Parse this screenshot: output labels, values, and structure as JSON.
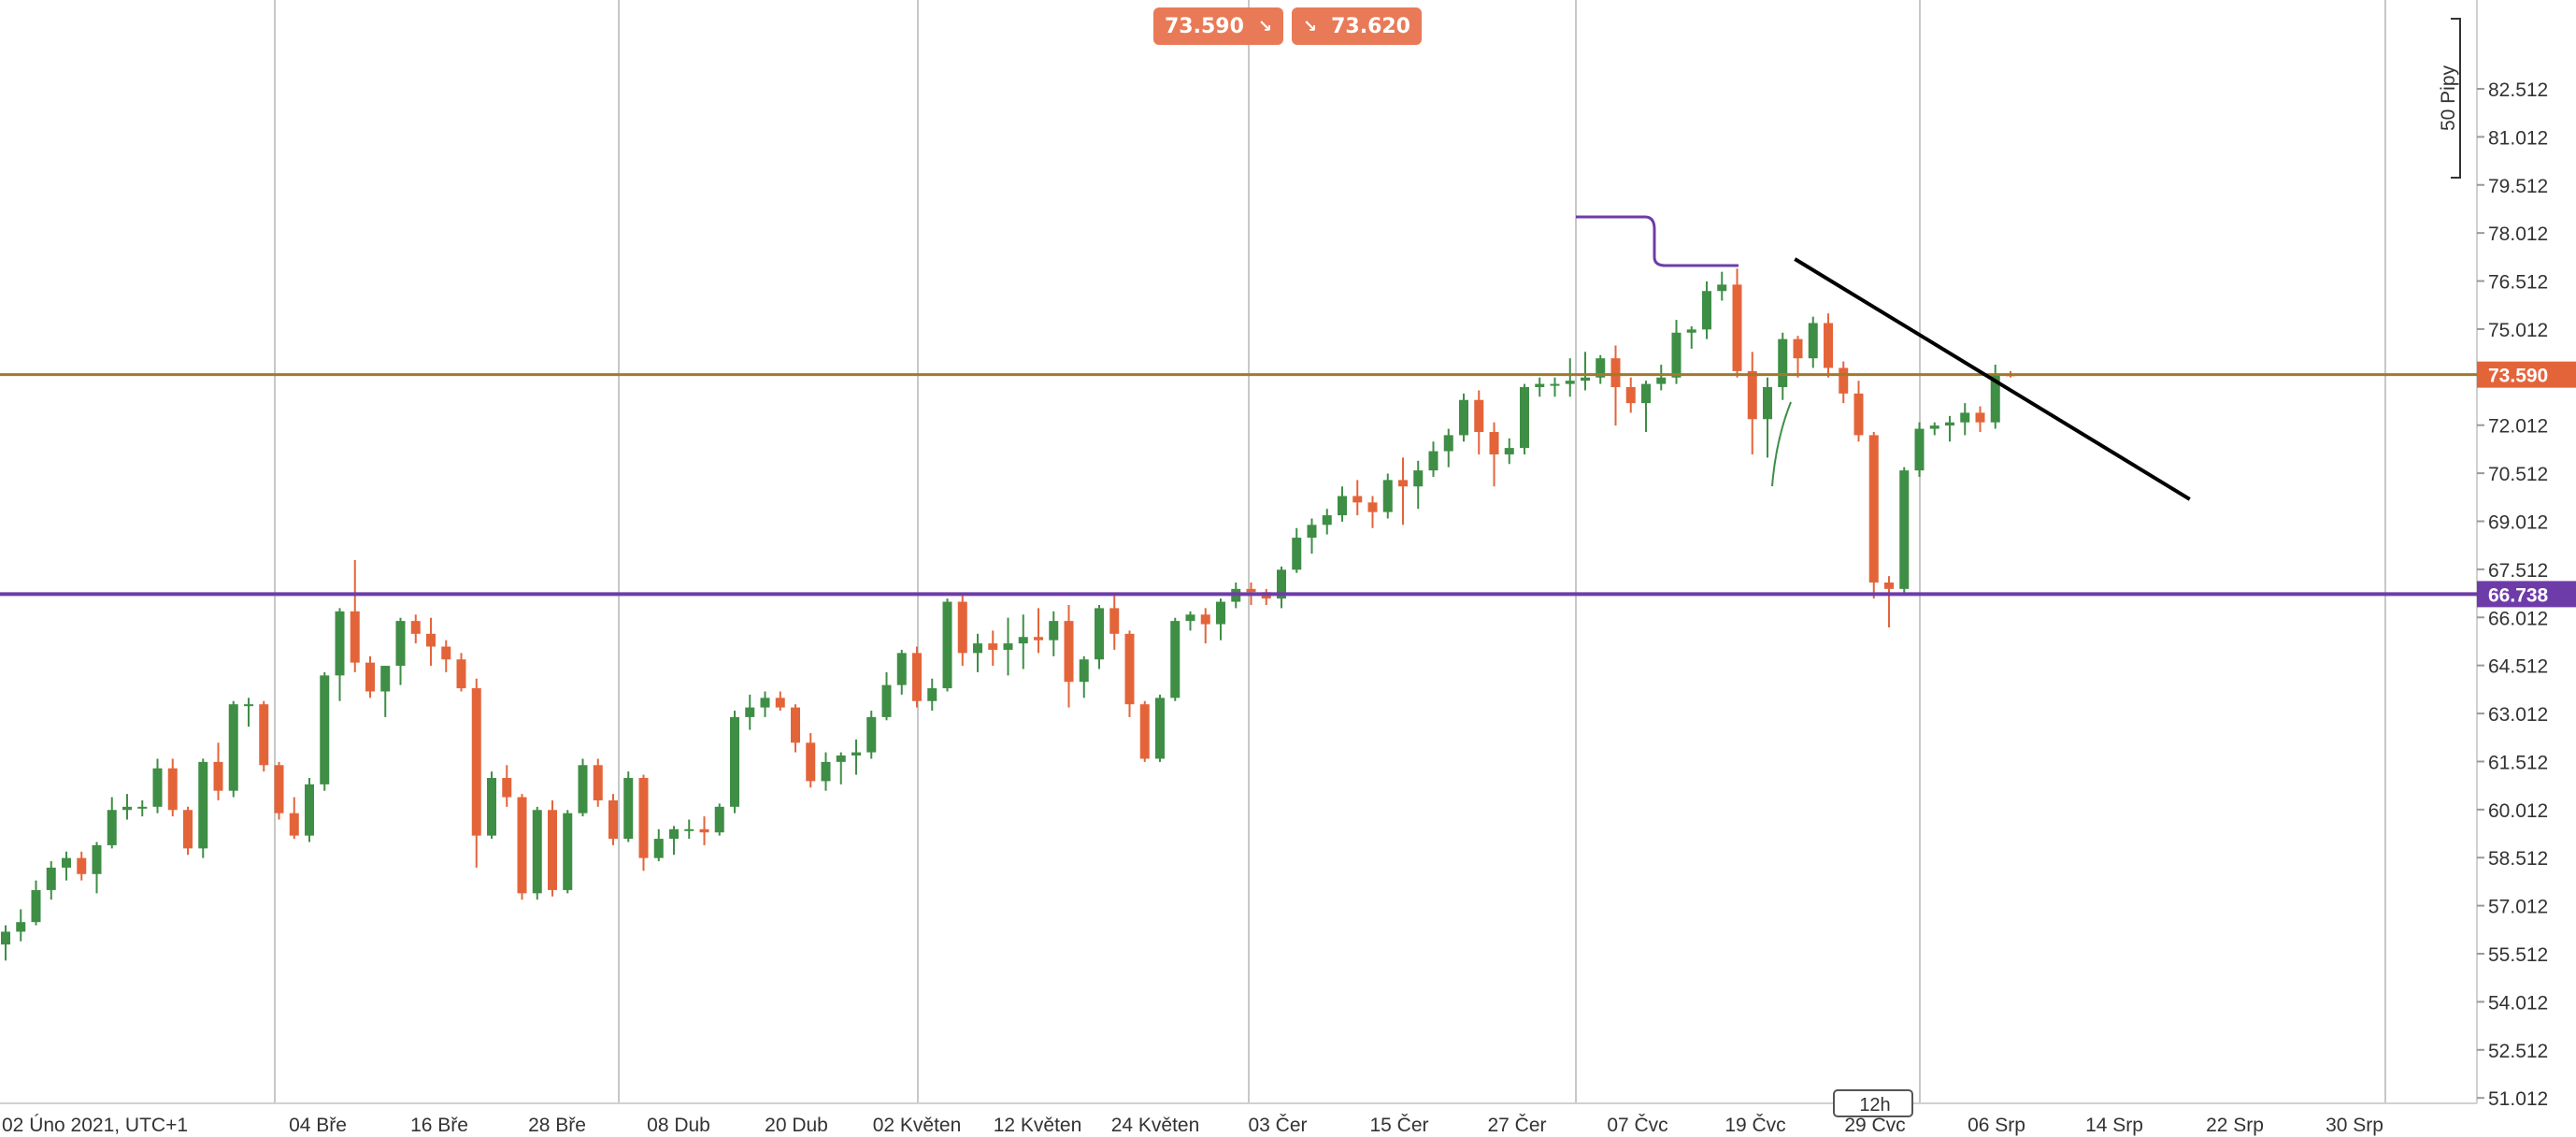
{
  "quote": {
    "sell": "73.590",
    "buy": "73.620",
    "sell_arrow": "↘",
    "buy_arrow": "↘"
  },
  "pip_scale_label": "50 Pipy",
  "timeframe": "12h",
  "colors": {
    "up": "#3e8e45",
    "down": "#e4643a",
    "price_line": "#a07a2a",
    "support_line": "#6e3ca8",
    "trendline": "#000000",
    "grid": "#c8c8c8"
  },
  "chart_data": {
    "type": "candlestick",
    "y_ticks": [
      "82.512",
      "81.012",
      "79.512",
      "78.012",
      "76.512",
      "75.012",
      "72.012",
      "70.512",
      "69.012",
      "67.512",
      "66.012",
      "64.512",
      "63.012",
      "61.512",
      "60.012",
      "58.512",
      "57.012",
      "55.512",
      "54.012",
      "52.512",
      "51.012"
    ],
    "x_labels": [
      "02 Úno 2021, UTC+1",
      "04 Bře",
      "16 Bře",
      "28 Bře",
      "08 Dub",
      "20 Dub",
      "02 Květen",
      "12 Květen",
      "24 Květen",
      "03 Čer",
      "15 Čer",
      "27 Čer",
      "07 Čvc",
      "19 Čvc",
      "29 Čvc",
      "06 Srp",
      "14 Srp",
      "22 Srp",
      "30 Srp"
    ],
    "ylim": [
      50.2,
      83.5
    ],
    "horizontal_lines": [
      {
        "name": "current-price",
        "value": 73.59,
        "label": "73.590"
      },
      {
        "name": "support",
        "value": 66.738,
        "label": "66.738"
      }
    ],
    "candles": [
      [
        55.8,
        56.4,
        55.3,
        56.2
      ],
      [
        56.2,
        56.9,
        55.9,
        56.5
      ],
      [
        56.5,
        57.8,
        56.4,
        57.5
      ],
      [
        57.5,
        58.4,
        57.2,
        58.2
      ],
      [
        58.2,
        58.7,
        57.8,
        58.5
      ],
      [
        58.5,
        58.7,
        57.8,
        58.0
      ],
      [
        58.0,
        59.0,
        57.4,
        58.9
      ],
      [
        58.9,
        60.4,
        58.8,
        60.0
      ],
      [
        60.0,
        60.5,
        59.7,
        60.1
      ],
      [
        60.1,
        60.3,
        59.8,
        60.1
      ],
      [
        60.1,
        61.6,
        59.9,
        61.3
      ],
      [
        61.3,
        61.6,
        59.8,
        60.0
      ],
      [
        60.0,
        60.1,
        58.6,
        58.8
      ],
      [
        58.8,
        61.6,
        58.5,
        61.5
      ],
      [
        61.5,
        62.1,
        60.3,
        60.6
      ],
      [
        60.6,
        63.4,
        60.4,
        63.3
      ],
      [
        63.3,
        63.5,
        62.6,
        63.3
      ],
      [
        63.3,
        63.4,
        61.2,
        61.4
      ],
      [
        61.4,
        61.5,
        59.7,
        59.9
      ],
      [
        59.9,
        60.4,
        59.1,
        59.2
      ],
      [
        59.2,
        61.0,
        59.0,
        60.8
      ],
      [
        60.8,
        64.3,
        60.6,
        64.2
      ],
      [
        64.2,
        66.3,
        63.4,
        66.2
      ],
      [
        66.2,
        67.8,
        64.3,
        64.6
      ],
      [
        64.6,
        64.8,
        63.5,
        63.7
      ],
      [
        63.7,
        64.5,
        62.9,
        64.5
      ],
      [
        64.5,
        66.0,
        63.9,
        65.9
      ],
      [
        65.9,
        66.1,
        65.2,
        65.5
      ],
      [
        65.5,
        66.0,
        64.5,
        65.1
      ],
      [
        65.1,
        65.3,
        64.3,
        64.7
      ],
      [
        64.7,
        64.9,
        63.7,
        63.8
      ],
      [
        63.8,
        64.1,
        58.2,
        59.2
      ],
      [
        59.2,
        61.2,
        59.1,
        61.0
      ],
      [
        61.0,
        61.4,
        60.1,
        60.4
      ],
      [
        60.4,
        60.5,
        57.2,
        57.4
      ],
      [
        57.4,
        60.1,
        57.2,
        60.0
      ],
      [
        60.0,
        60.3,
        57.3,
        57.5
      ],
      [
        57.5,
        60.0,
        57.4,
        59.9
      ],
      [
        59.9,
        61.6,
        59.8,
        61.4
      ],
      [
        61.4,
        61.6,
        60.1,
        60.3
      ],
      [
        60.3,
        60.5,
        58.9,
        59.1
      ],
      [
        59.1,
        61.2,
        59.0,
        61.0
      ],
      [
        61.0,
        61.1,
        58.1,
        58.5
      ],
      [
        58.5,
        59.4,
        58.4,
        59.1
      ],
      [
        59.1,
        59.5,
        58.6,
        59.4
      ],
      [
        59.4,
        59.7,
        59.1,
        59.4
      ],
      [
        59.4,
        59.8,
        58.9,
        59.3
      ],
      [
        59.3,
        60.2,
        59.2,
        60.1
      ],
      [
        60.1,
        63.1,
        59.9,
        62.9
      ],
      [
        62.9,
        63.6,
        62.5,
        63.2
      ],
      [
        63.2,
        63.7,
        62.9,
        63.5
      ],
      [
        63.5,
        63.7,
        63.1,
        63.2
      ],
      [
        63.2,
        63.3,
        61.8,
        62.1
      ],
      [
        62.1,
        62.4,
        60.7,
        60.9
      ],
      [
        60.9,
        61.8,
        60.6,
        61.5
      ],
      [
        61.5,
        61.8,
        60.8,
        61.7
      ],
      [
        61.7,
        62.2,
        61.1,
        61.8
      ],
      [
        61.8,
        63.1,
        61.6,
        62.9
      ],
      [
        62.9,
        64.3,
        62.8,
        63.9
      ],
      [
        63.9,
        65.0,
        63.6,
        64.9
      ],
      [
        64.9,
        65.1,
        63.2,
        63.4
      ],
      [
        63.4,
        64.1,
        63.1,
        63.8
      ],
      [
        63.8,
        66.6,
        63.7,
        66.5
      ],
      [
        66.5,
        66.7,
        64.5,
        64.9
      ],
      [
        64.9,
        65.5,
        64.3,
        65.2
      ],
      [
        65.2,
        65.6,
        64.5,
        65.0
      ],
      [
        65.0,
        66.0,
        64.2,
        65.2
      ],
      [
        65.2,
        66.1,
        64.4,
        65.4
      ],
      [
        65.4,
        66.3,
        64.9,
        65.3
      ],
      [
        65.3,
        66.2,
        64.8,
        65.9
      ],
      [
        65.9,
        66.4,
        63.2,
        64.0
      ],
      [
        64.0,
        64.8,
        63.5,
        64.7
      ],
      [
        64.7,
        66.4,
        64.4,
        66.3
      ],
      [
        66.3,
        66.7,
        65.0,
        65.5
      ],
      [
        65.5,
        65.6,
        62.9,
        63.3
      ],
      [
        63.3,
        63.4,
        61.5,
        61.6
      ],
      [
        61.6,
        63.6,
        61.5,
        63.5
      ],
      [
        63.5,
        66.0,
        63.4,
        65.9
      ],
      [
        65.9,
        66.2,
        65.6,
        66.1
      ],
      [
        66.1,
        66.3,
        65.2,
        65.8
      ],
      [
        65.8,
        66.6,
        65.3,
        66.5
      ],
      [
        66.5,
        67.1,
        66.3,
        66.9
      ],
      [
        66.9,
        67.1,
        66.4,
        66.8
      ],
      [
        66.8,
        66.9,
        66.4,
        66.6
      ],
      [
        66.6,
        67.6,
        66.3,
        67.5
      ],
      [
        67.5,
        68.8,
        67.4,
        68.5
      ],
      [
        68.5,
        69.1,
        68.0,
        68.9
      ],
      [
        68.9,
        69.4,
        68.6,
        69.2
      ],
      [
        69.2,
        70.1,
        69.0,
        69.8
      ],
      [
        69.8,
        70.3,
        69.2,
        69.6
      ],
      [
        69.6,
        69.8,
        68.8,
        69.3
      ],
      [
        69.3,
        70.5,
        69.1,
        70.3
      ],
      [
        70.3,
        71.0,
        68.9,
        70.1
      ],
      [
        70.1,
        70.9,
        69.4,
        70.6
      ],
      [
        70.6,
        71.5,
        70.4,
        71.2
      ],
      [
        71.2,
        71.9,
        70.7,
        71.7
      ],
      [
        71.7,
        73.0,
        71.5,
        72.8
      ],
      [
        72.8,
        73.1,
        71.1,
        71.8
      ],
      [
        71.8,
        72.1,
        70.1,
        71.1
      ],
      [
        71.1,
        71.6,
        70.8,
        71.3
      ],
      [
        71.3,
        73.3,
        71.1,
        73.2
      ],
      [
        73.2,
        73.5,
        72.9,
        73.3
      ],
      [
        73.3,
        73.5,
        72.9,
        73.3
      ],
      [
        73.3,
        74.1,
        72.9,
        73.4
      ],
      [
        73.4,
        74.3,
        73.1,
        73.5
      ],
      [
        73.5,
        74.2,
        73.3,
        74.1
      ],
      [
        74.1,
        74.5,
        72.0,
        73.2
      ],
      [
        73.2,
        73.5,
        72.4,
        72.7
      ],
      [
        72.7,
        73.4,
        71.8,
        73.3
      ],
      [
        73.3,
        73.9,
        73.1,
        73.5
      ],
      [
        73.5,
        75.3,
        73.3,
        74.9
      ],
      [
        74.9,
        75.1,
        74.4,
        75.0
      ],
      [
        75.0,
        76.5,
        74.7,
        76.2
      ],
      [
        76.2,
        76.8,
        75.9,
        76.4
      ],
      [
        76.4,
        76.9,
        73.5,
        73.7
      ],
      [
        73.7,
        74.3,
        71.1,
        72.2
      ],
      [
        72.2,
        73.5,
        71.0,
        73.2
      ],
      [
        73.2,
        74.9,
        72.8,
        74.7
      ],
      [
        74.7,
        74.8,
        73.5,
        74.1
      ],
      [
        74.1,
        75.4,
        73.8,
        75.2
      ],
      [
        75.2,
        75.5,
        73.5,
        73.8
      ],
      [
        73.8,
        74.0,
        72.7,
        73.0
      ],
      [
        73.0,
        73.4,
        71.5,
        71.7
      ],
      [
        71.7,
        71.8,
        66.6,
        67.1
      ],
      [
        67.1,
        67.3,
        65.7,
        66.9
      ],
      [
        66.9,
        70.7,
        66.7,
        70.6
      ],
      [
        70.6,
        72.1,
        70.4,
        71.9
      ],
      [
        71.9,
        72.1,
        71.7,
        72.0
      ],
      [
        72.0,
        72.3,
        71.5,
        72.1
      ],
      [
        72.1,
        72.7,
        71.7,
        72.4
      ],
      [
        72.4,
        72.6,
        71.8,
        72.1
      ],
      [
        72.1,
        73.9,
        71.9,
        73.6
      ],
      [
        73.6,
        73.7,
        73.5,
        73.59
      ]
    ],
    "trendline": {
      "from": {
        "index": 117.8,
        "value": 77.2
      },
      "to": {
        "index": 143.8,
        "value": 69.7
      }
    }
  }
}
